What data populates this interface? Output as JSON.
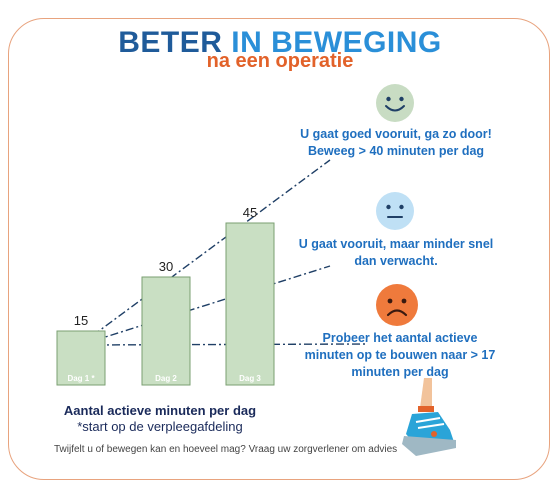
{
  "title": {
    "part1": "BETER",
    "part2": "IN BEWEGING"
  },
  "subtitle": "na een operatie",
  "chart_data": {
    "type": "bar",
    "categories": [
      "Dag 1 *",
      "Dag 2",
      "Dag 3"
    ],
    "values": [
      15,
      30,
      45
    ],
    "xlabel": "Aantal actieve minuten per dag",
    "note": "*start op de verpleegafdeling",
    "ylim": [
      0,
      50
    ],
    "grid": false,
    "bar_color": "#c9dfc3",
    "bar_edge": "#7a9f72"
  },
  "messages": [
    {
      "face": "happy-face",
      "color": "#c8dcc3",
      "text": "U gaat goed vooruit, ga zo door! Beweeg > 40 minuten per dag"
    },
    {
      "face": "neutral-face",
      "color": "#bfe0f5",
      "text": "U gaat vooruit, maar minder snel dan verwacht."
    },
    {
      "face": "sad-face",
      "color": "#ef7a3c",
      "text": "Probeer het aantal actieve minuten op te bouwen naar > 17 minuten per dag"
    }
  ],
  "footer": "Twijfelt u of bewegen kan en hoeveel mag?  Vraag uw zorgverlener om advies",
  "colors": {
    "title_dark": "#1f5b9a",
    "title_light": "#2a8fd8",
    "subtitle": "#e2622a",
    "message": "#1f6fbf",
    "line": "#1f3f66"
  }
}
